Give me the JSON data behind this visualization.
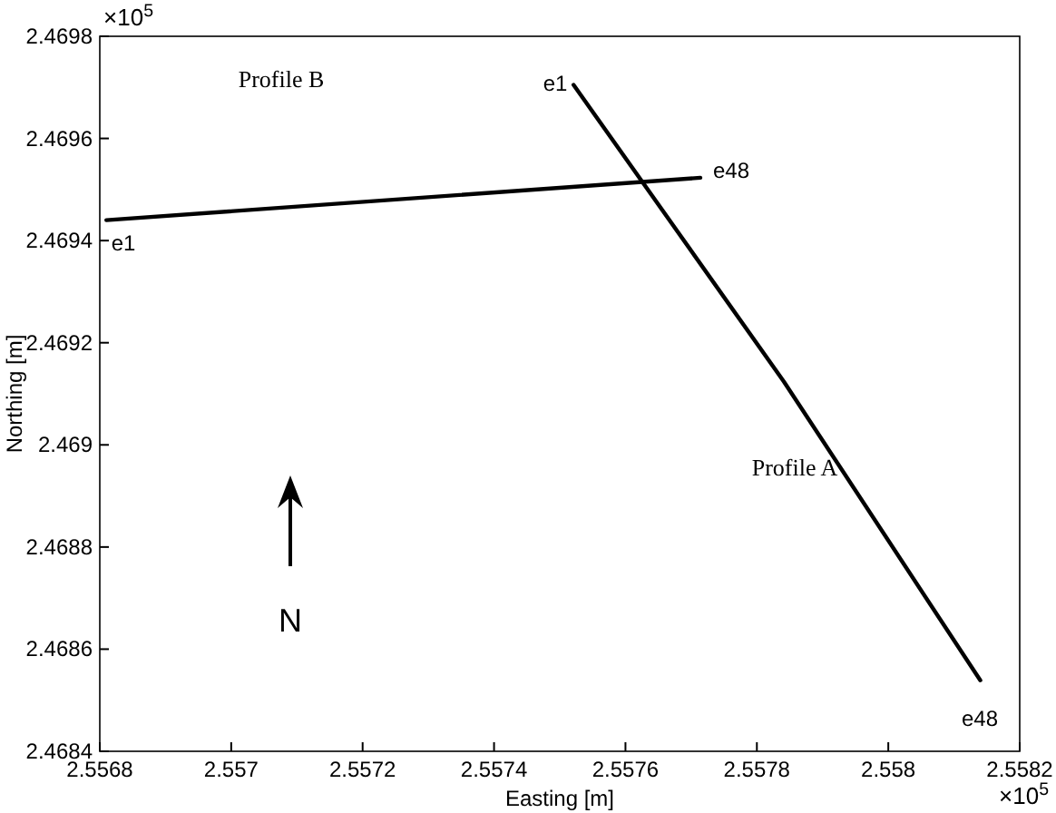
{
  "chart_data": {
    "type": "line",
    "xlabel": "Easting [m]",
    "ylabel": "Northing [m]",
    "xlim": [
      2.5568,
      2.5582
    ],
    "ylim": [
      2.4684,
      2.4698
    ],
    "xticks": [
      2.5568,
      2.557,
      2.5572,
      2.5574,
      2.5576,
      2.5578,
      2.558,
      2.5582
    ],
    "yticks": [
      2.4684,
      2.4686,
      2.4688,
      2.469,
      2.4692,
      2.4694,
      2.4696,
      2.4698
    ],
    "series": [
      {
        "color": "#000000",
        "x": [
          2.557521,
          2.557841,
          2.55814
        ],
        "values": [
          2.469705,
          2.469124,
          2.468539
        ]
      },
      {
        "color": "#000000",
        "x": [
          2.55681,
          2.557714
        ],
        "values": [
          2.46944,
          2.469523
        ]
      }
    ],
    "annotations": [
      "×10$^{5}$",
      "×10$^{5}$",
      "N",
      "e1",
      "Profile A",
      "e48",
      "e1",
      "Profile B",
      "e48"
    ],
    "grid": false,
    "marker": "none",
    "line_style": "solid"
  }
}
